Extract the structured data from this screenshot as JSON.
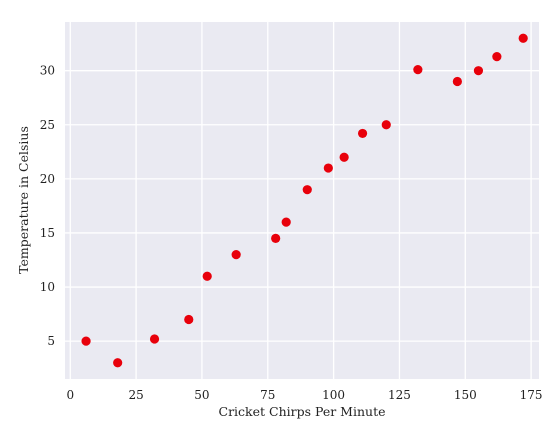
{
  "chart_data": {
    "type": "scatter",
    "title": "",
    "xlabel": "Cricket Chirps Per Minute",
    "ylabel": "Temperature in Celsius",
    "xlim": [
      -2,
      178
    ],
    "ylim": [
      1.5,
      34.5
    ],
    "xticks": [
      0,
      25,
      50,
      75,
      100,
      125,
      150,
      175
    ],
    "yticks": [
      5,
      10,
      15,
      20,
      25,
      30
    ],
    "grid": true,
    "colors": {
      "plot_background": "#EAEAF2",
      "grid": "#FFFFFF",
      "marker": "#E8000B"
    },
    "series": [
      {
        "x": [
          6,
          18,
          32,
          45,
          52,
          63,
          78,
          82,
          90,
          98,
          104,
          111,
          120,
          132,
          147,
          155,
          162,
          172
        ],
        "y": [
          5,
          3,
          5.2,
          7,
          11,
          13,
          14.5,
          16,
          19,
          21,
          22,
          24.2,
          25,
          30.1,
          29,
          30,
          31.3,
          33
        ]
      }
    ]
  }
}
